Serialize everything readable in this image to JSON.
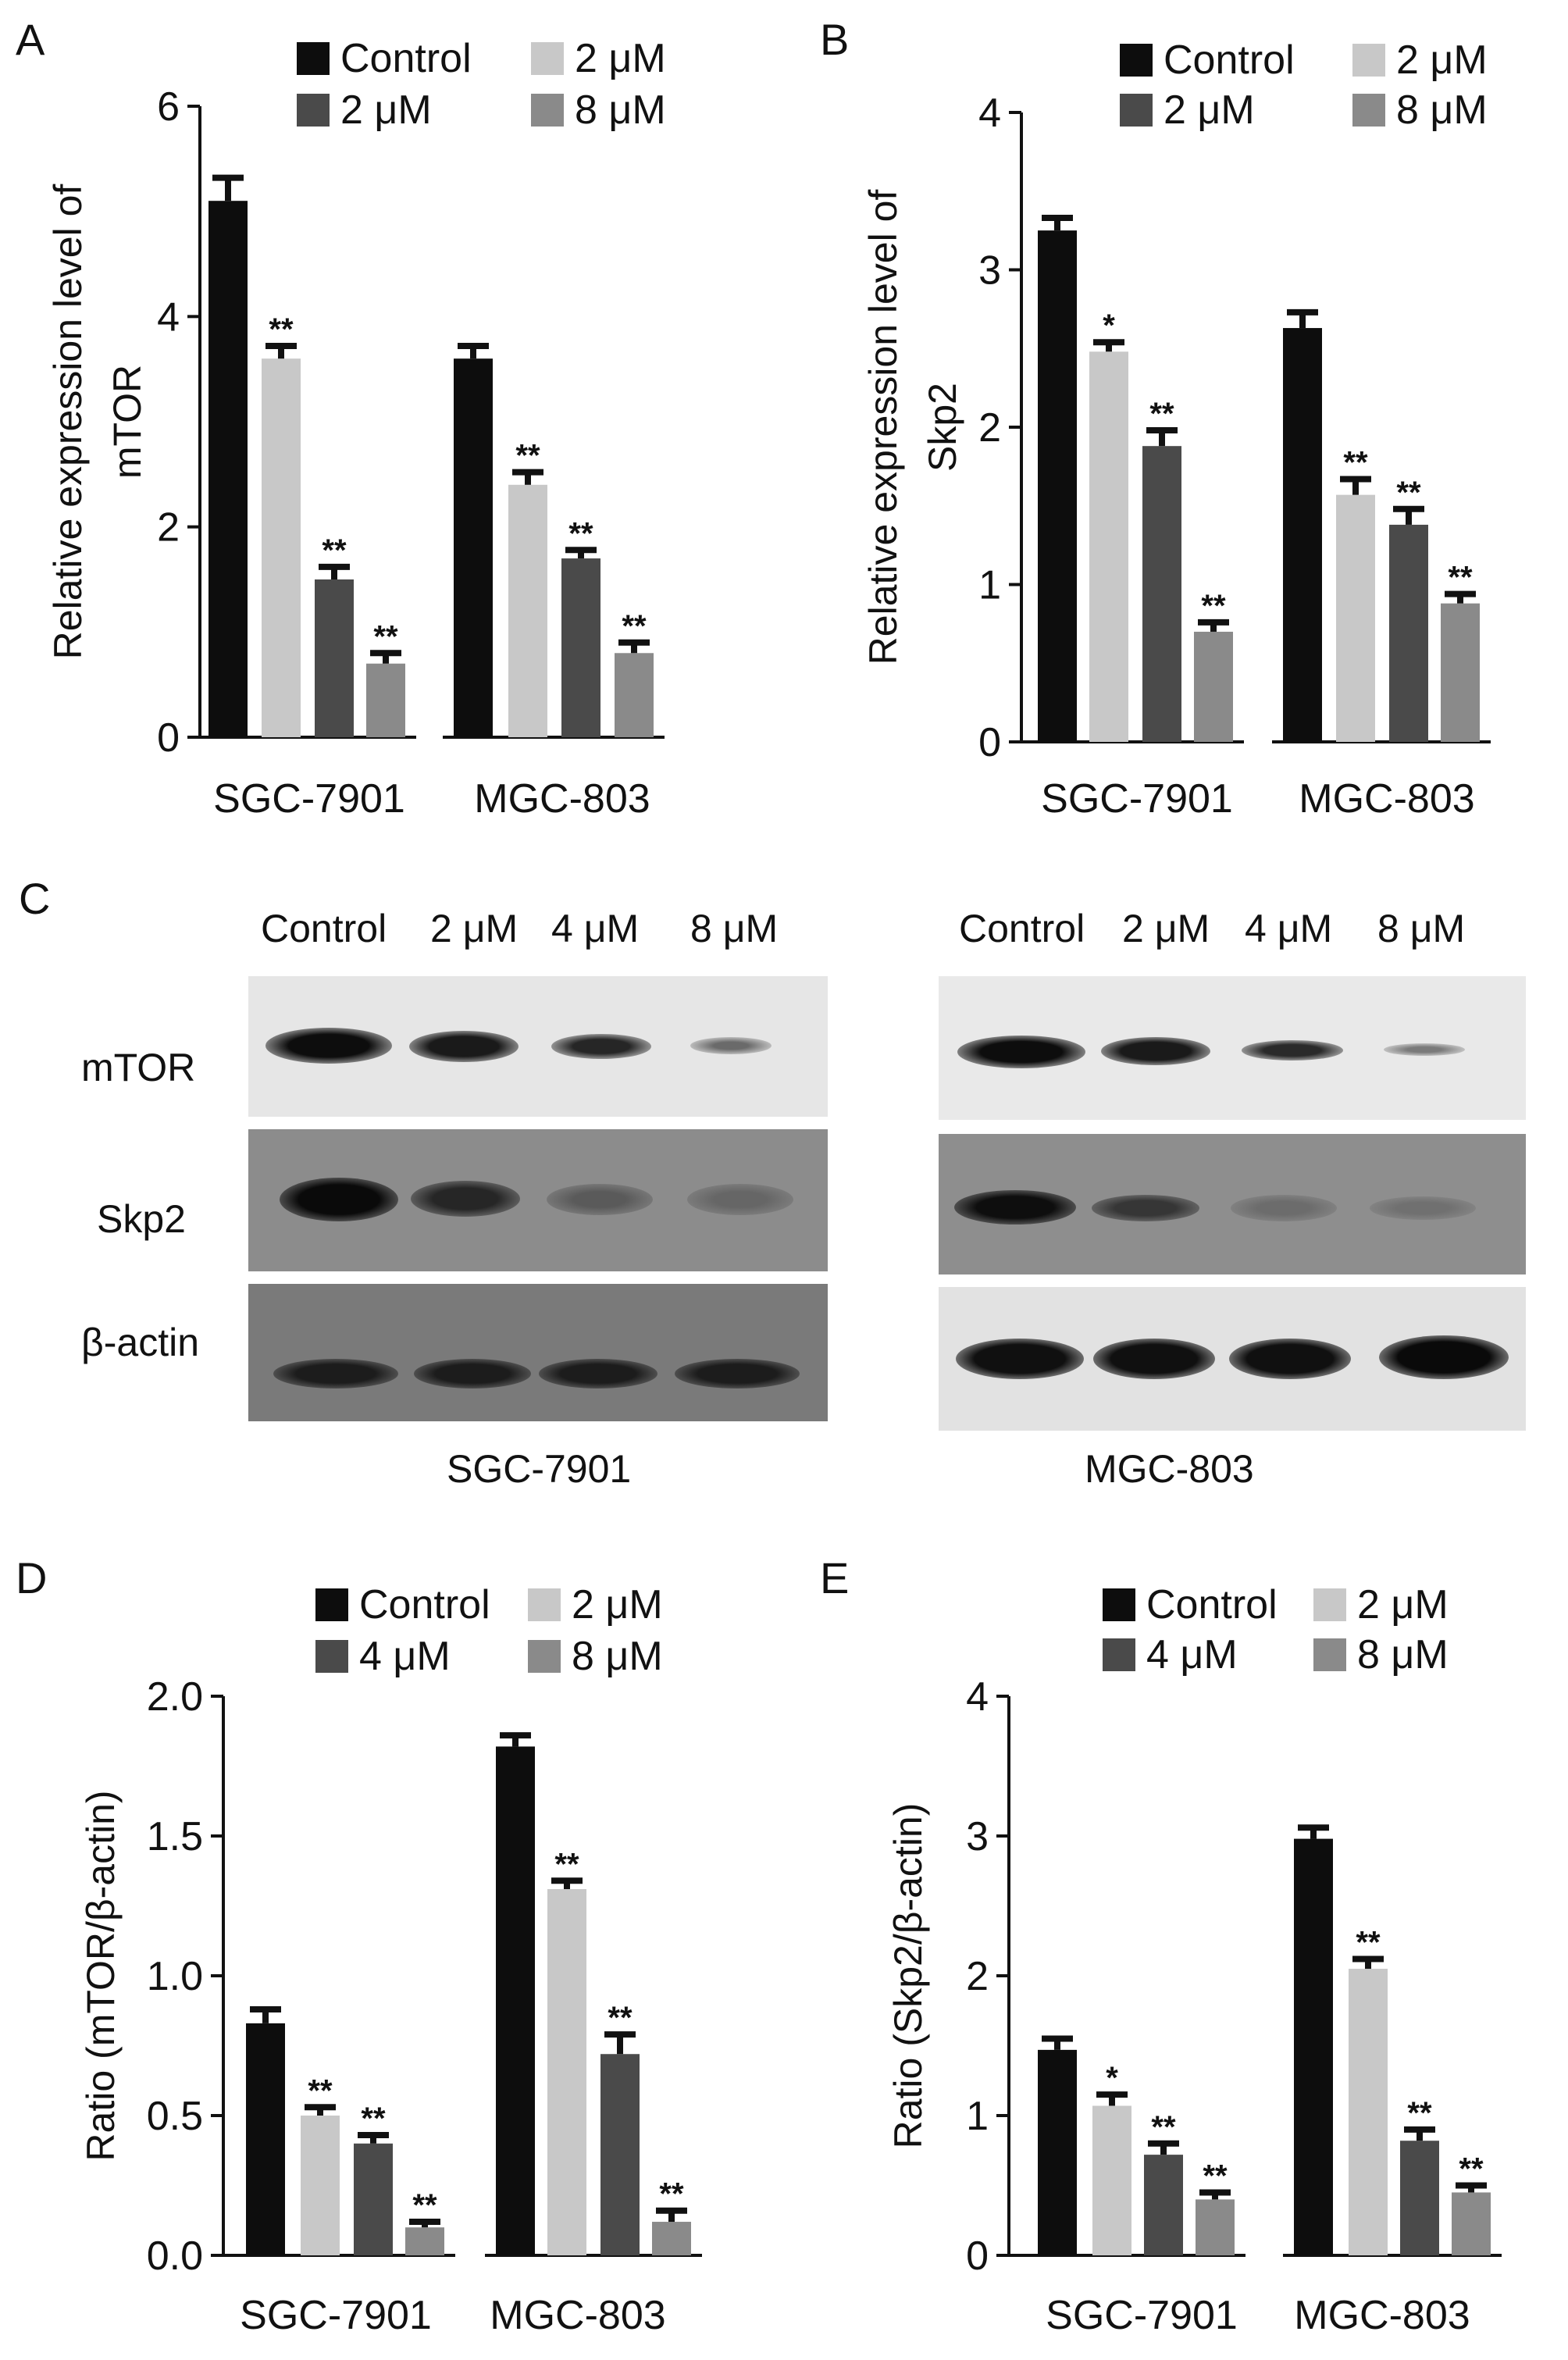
{
  "panels": {
    "A": {
      "letter": "A",
      "ylabel_lines": [
        "Relative expression level of",
        "mTOR"
      ],
      "chart_data": {
        "type": "bar",
        "categories": [
          "SGC-7901",
          "MGC-803"
        ],
        "ylim": [
          0,
          6
        ],
        "yticks": [
          "0",
          "2",
          "4",
          "6"
        ],
        "legend": [
          "Control",
          "2 μM",
          "2 μM",
          "8 μM"
        ],
        "series": [
          {
            "name": "Control",
            "values": [
              5.1,
              3.6
            ],
            "err": [
              0.22,
              0.12
            ],
            "sig": [
              "",
              ""
            ]
          },
          {
            "name": "2 μM",
            "values": [
              3.6,
              2.4
            ],
            "err": [
              0.12,
              0.12
            ],
            "sig": [
              "**",
              "**"
            ]
          },
          {
            "name": "2 μM",
            "values": [
              1.5,
              1.7
            ],
            "err": [
              0.12,
              0.08
            ],
            "sig": [
              "**",
              "**"
            ]
          },
          {
            "name": "8 μM",
            "values": [
              0.7,
              0.8
            ],
            "err": [
              0.1,
              0.1
            ],
            "sig": [
              "**",
              "**"
            ]
          }
        ]
      }
    },
    "B": {
      "letter": "B",
      "ylabel_lines": [
        "Relative expression level of",
        "Skp2"
      ],
      "chart_data": {
        "type": "bar",
        "categories": [
          "SGC-7901",
          "MGC-803"
        ],
        "ylim": [
          0,
          4
        ],
        "yticks": [
          "0",
          "1",
          "2",
          "3",
          "4"
        ],
        "legend": [
          "Control",
          "2 μM",
          "2 μM",
          "8 μM"
        ],
        "series": [
          {
            "name": "Control",
            "values": [
              3.25,
              2.63
            ],
            "err": [
              0.08,
              0.1
            ],
            "sig": [
              "",
              ""
            ]
          },
          {
            "name": "2 μM",
            "values": [
              2.48,
              1.57
            ],
            "err": [
              0.06,
              0.1
            ],
            "sig": [
              "*",
              "**"
            ]
          },
          {
            "name": "2 μM",
            "values": [
              1.88,
              1.38
            ],
            "err": [
              0.1,
              0.1
            ],
            "sig": [
              "**",
              "**"
            ]
          },
          {
            "name": "8 μM",
            "values": [
              0.7,
              0.88
            ],
            "err": [
              0.06,
              0.06
            ],
            "sig": [
              "**",
              "**"
            ]
          }
        ]
      }
    },
    "C": {
      "letter": "C",
      "lanes": [
        "Control",
        "2 μM",
        "4 μM",
        "8 μM"
      ],
      "rows": [
        "mTOR",
        "Skp2",
        "β-actin"
      ],
      "cells": [
        "SGC-7901",
        "MGC-803"
      ]
    },
    "D": {
      "letter": "D",
      "ylabel": "Ratio  (mTOR/β-actin)",
      "chart_data": {
        "type": "bar",
        "categories": [
          "SGC-7901",
          "MGC-803"
        ],
        "ylim": [
          0,
          2.0
        ],
        "yticks": [
          "0.0",
          "0.5",
          "1.0",
          "1.5",
          "2.0"
        ],
        "legend": [
          "Control",
          "2 μM",
          "4 μM",
          "8 μM"
        ],
        "series": [
          {
            "name": "Control",
            "values": [
              0.83,
              1.82
            ],
            "err": [
              0.05,
              0.04
            ],
            "sig": [
              "",
              ""
            ]
          },
          {
            "name": "2 μM",
            "values": [
              0.5,
              1.31
            ],
            "err": [
              0.03,
              0.03
            ],
            "sig": [
              "**",
              "**"
            ]
          },
          {
            "name": "4 μM",
            "values": [
              0.4,
              0.72
            ],
            "err": [
              0.03,
              0.07
            ],
            "sig": [
              "**",
              "**"
            ]
          },
          {
            "name": "8 μM",
            "values": [
              0.1,
              0.12
            ],
            "err": [
              0.02,
              0.04
            ],
            "sig": [
              "**",
              "**"
            ]
          }
        ]
      }
    },
    "E": {
      "letter": "E",
      "ylabel": "Ratio  (Skp2/β-actin)",
      "chart_data": {
        "type": "bar",
        "categories": [
          "SGC-7901",
          "MGC-803"
        ],
        "ylim": [
          0,
          4
        ],
        "yticks": [
          "0",
          "1",
          "2",
          "3",
          "4"
        ],
        "legend": [
          "Control",
          "2 μM",
          "4 μM",
          "8 μM"
        ],
        "series": [
          {
            "name": "Control",
            "values": [
              1.47,
              2.98
            ],
            "err": [
              0.08,
              0.08
            ],
            "sig": [
              "",
              ""
            ]
          },
          {
            "name": "2 μM",
            "values": [
              1.07,
              2.05
            ],
            "err": [
              0.08,
              0.07
            ],
            "sig": [
              "*",
              "**"
            ]
          },
          {
            "name": "4 μM",
            "values": [
              0.72,
              0.82
            ],
            "err": [
              0.08,
              0.08
            ],
            "sig": [
              "**",
              "**"
            ]
          },
          {
            "name": "8 μM",
            "values": [
              0.4,
              0.45
            ],
            "err": [
              0.05,
              0.05
            ],
            "sig": [
              "**",
              "**"
            ]
          }
        ]
      }
    }
  },
  "colors": {
    "Control": "#0d0d0d",
    "light": "#c8c8c8",
    "dark": "#4a4a4a",
    "mid": "#8a8a8a"
  }
}
